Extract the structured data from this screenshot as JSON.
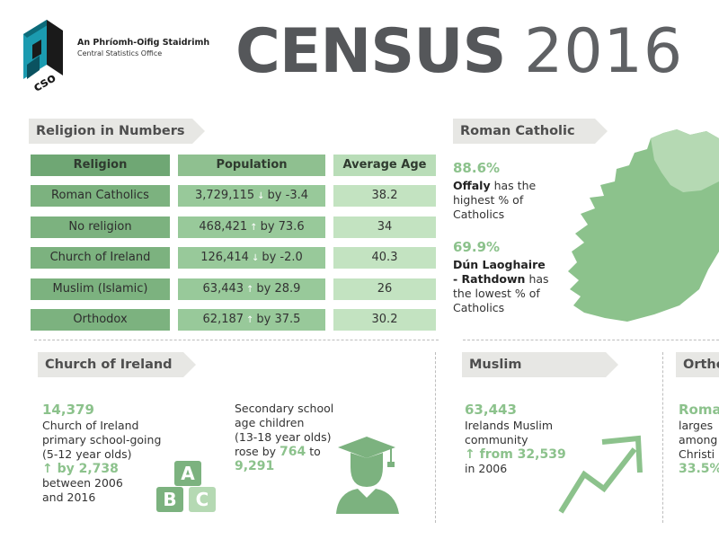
{
  "header": {
    "org_gaelic": "An Phríomh-Oifig Staidrimh",
    "org_english": "Central Statistics Office",
    "logo_text": "cso",
    "title_bold": "CENSUS",
    "title_year": "2016"
  },
  "sections": {
    "religion_numbers": "Religion in Numbers",
    "roman_catholic": "Roman Catholic",
    "church_of_ireland": "Church of Ireland",
    "muslim": "Muslim",
    "orthodox": "Ortho"
  },
  "table": {
    "headers": [
      "Religion",
      "Population",
      "Average Age"
    ],
    "rows": [
      {
        "religion": "Roman Catholics",
        "population": "3,729,115",
        "dir": "↓",
        "change": "by -3.4",
        "age": "38.2"
      },
      {
        "religion": "No religion",
        "population": "468,421",
        "dir": "↑",
        "change": "by 73.6",
        "age": "34"
      },
      {
        "religion": "Church of Ireland",
        "population": "126,414",
        "dir": "↓",
        "change": "by -2.0",
        "age": "40.3"
      },
      {
        "religion": "Muslim (Islamic)",
        "population": "63,443",
        "dir": "↑",
        "change": "by 28.9",
        "age": "26"
      },
      {
        "religion": "Orthodox",
        "population": "62,187",
        "dir": "↑",
        "change": "by 37.5",
        "age": "30.2"
      }
    ]
  },
  "rc": {
    "high_pct": "88.6%",
    "high_county": "Offaly",
    "high_text1": " has the",
    "high_text2": "highest % of",
    "high_text3": "Catholics",
    "low_pct": "69.9%",
    "low_county1": "Dún Laoghaire",
    "low_county2": "- Rathdown",
    "low_text1": " has",
    "low_text2": "the lowest % of",
    "low_text3": "Catholics"
  },
  "coi": {
    "num": "14,379",
    "l1": "Church of Ireland",
    "l2": "primary school-going",
    "l3": "(5-12 year olds)",
    "up": "↑ by 2,738",
    "l4": "between 2006",
    "l5": "and 2016",
    "s1": "Secondary school",
    "s2": "age  children",
    "s3": "(13-18 year olds)",
    "s4a": "rose by ",
    "s4b": "764",
    "s4c": " to",
    "s5": "9,291",
    "blocks": [
      "A",
      "B",
      "C"
    ]
  },
  "muslim_stats": {
    "num": "63,443",
    "l1": "Irelands Muslim",
    "l2": "community",
    "up": "↑ from 32,539",
    "l3": "in 2006"
  },
  "orthodox_stats": {
    "l1": "Roma",
    "l2": "larges",
    "l3": "among",
    "l4": "Christi",
    "l5": "33.5%"
  },
  "colors": {
    "accent_green": "#8cc28c",
    "map_green": "#8cc28c",
    "map_light": "#c3e3c1",
    "title_grey": "#55575a"
  }
}
